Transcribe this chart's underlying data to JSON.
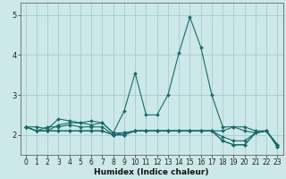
{
  "xlabel": "Humidex (Indice chaleur)",
  "ylabel": "",
  "xlim": [
    -0.5,
    23.5
  ],
  "ylim": [
    1.5,
    5.3
  ],
  "yticks": [
    2,
    3,
    4,
    5
  ],
  "xticks": [
    0,
    1,
    2,
    3,
    4,
    5,
    6,
    7,
    8,
    9,
    10,
    11,
    12,
    13,
    14,
    15,
    16,
    17,
    18,
    19,
    20,
    21,
    22,
    23
  ],
  "bg_color": "#cce8e8",
  "grid_color": "#aacccc",
  "line_color": "#1a6b6b",
  "series": [
    [
      2.2,
      2.2,
      2.15,
      2.4,
      2.35,
      2.3,
      2.35,
      2.3,
      2.05,
      2.6,
      3.55,
      2.5,
      2.5,
      3.0,
      4.05,
      4.95,
      4.2,
      3.0,
      2.2,
      2.2,
      2.2,
      2.1,
      2.1,
      1.75
    ],
    [
      2.2,
      2.1,
      2.1,
      2.25,
      2.3,
      2.3,
      2.25,
      2.3,
      2.05,
      2.05,
      2.1,
      2.1,
      2.1,
      2.1,
      2.1,
      2.1,
      2.1,
      2.1,
      2.1,
      2.2,
      2.1,
      2.05,
      2.1,
      1.75
    ],
    [
      2.2,
      2.1,
      2.2,
      2.2,
      2.25,
      2.2,
      2.2,
      2.2,
      2.0,
      2.05,
      2.1,
      2.1,
      2.1,
      2.1,
      2.1,
      2.1,
      2.1,
      2.1,
      1.95,
      1.85,
      1.85,
      2.05,
      2.1,
      1.75
    ],
    [
      2.2,
      2.1,
      2.1,
      2.1,
      2.1,
      2.1,
      2.1,
      2.1,
      2.0,
      2.0,
      2.1,
      2.1,
      2.1,
      2.1,
      2.1,
      2.1,
      2.1,
      2.1,
      1.85,
      1.75,
      1.75,
      2.05,
      2.1,
      1.7
    ],
    [
      2.2,
      2.1,
      2.1,
      2.1,
      2.1,
      2.1,
      2.1,
      2.1,
      2.0,
      2.0,
      2.1,
      2.1,
      2.1,
      2.1,
      2.1,
      2.1,
      2.1,
      2.1,
      1.85,
      1.75,
      1.75,
      2.05,
      2.1,
      1.7
    ]
  ],
  "xlabel_fontsize": 6.5,
  "tick_fontsize": 5.5
}
